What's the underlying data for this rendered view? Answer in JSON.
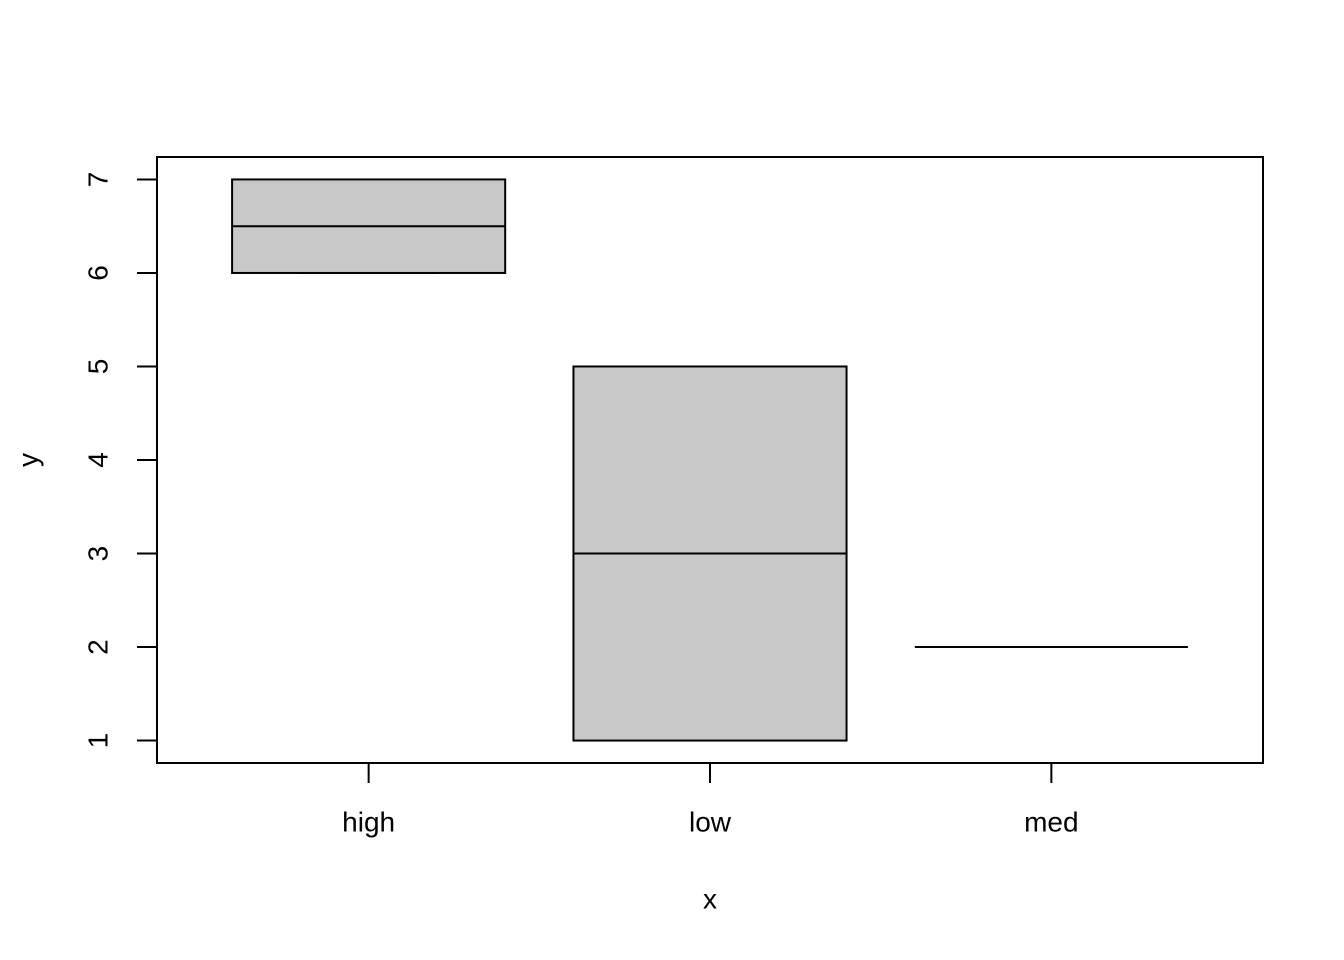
{
  "chart_data": {
    "type": "box",
    "xlabel": "x",
    "ylabel": "y",
    "categories": [
      "high",
      "low",
      "med"
    ],
    "boxes": [
      {
        "min": 6,
        "q1": 6,
        "median": 6.5,
        "q3": 7,
        "max": 7
      },
      {
        "min": 1,
        "q1": 1,
        "median": 3,
        "q3": 5,
        "max": 5
      },
      {
        "min": 2,
        "q1": 2,
        "median": 2,
        "q3": 2,
        "max": 2
      }
    ],
    "color": "#c8c8c8",
    "ylim": [
      0.76,
      7.24
    ],
    "yticks": [
      1,
      2,
      3,
      4,
      5,
      6,
      7
    ]
  }
}
